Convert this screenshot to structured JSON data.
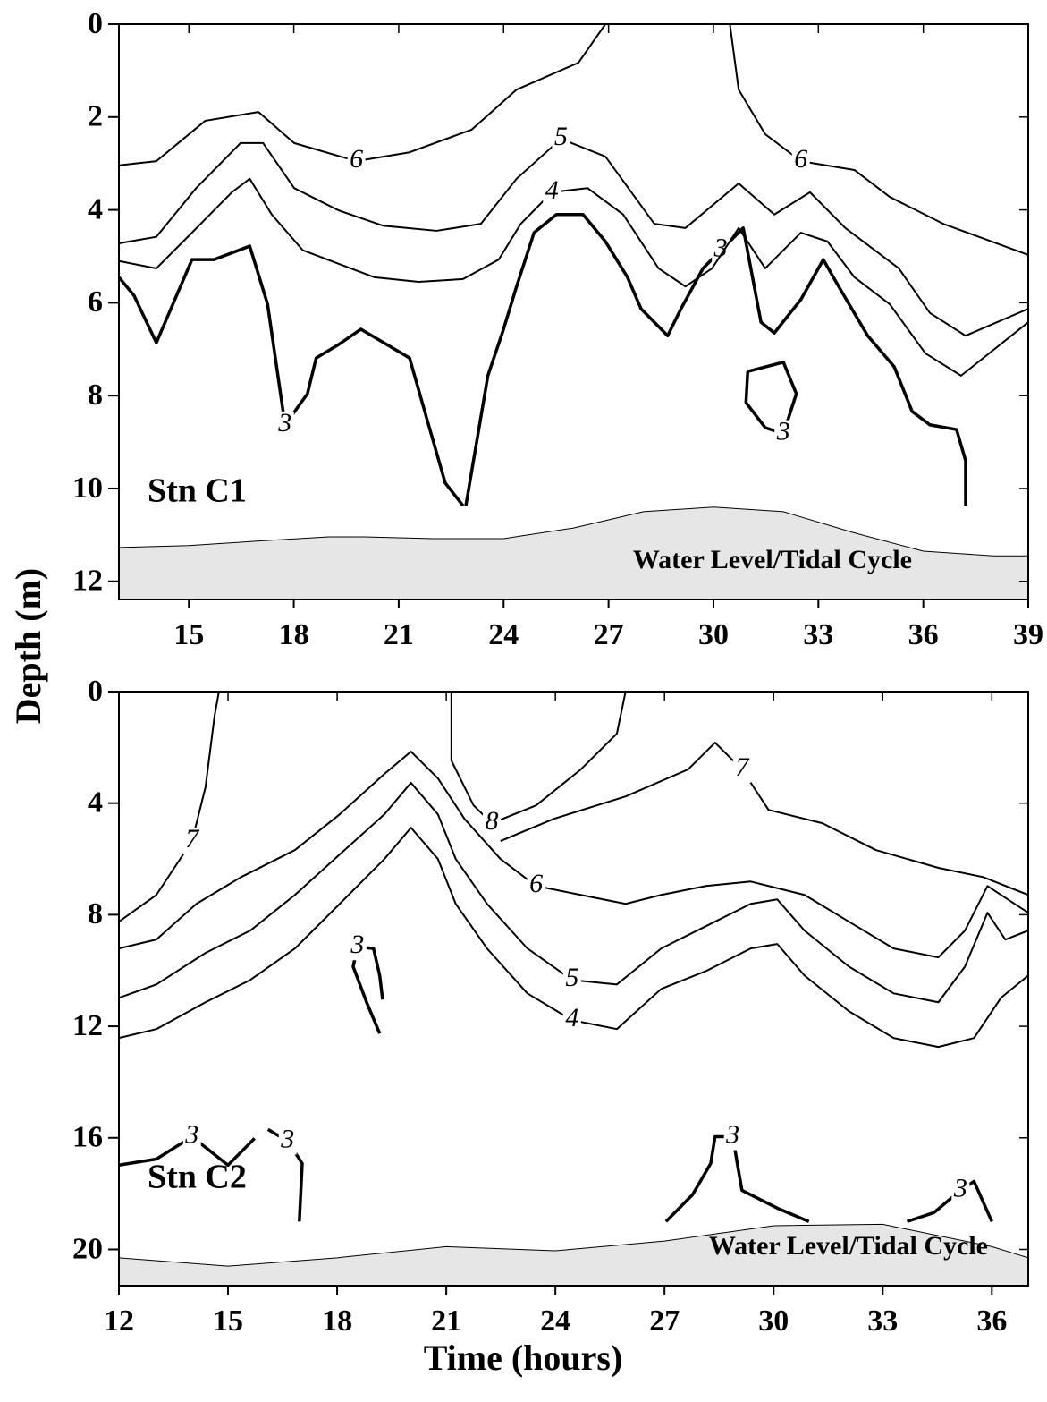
{
  "chart_data": [
    {
      "type": "contour",
      "label": "Stn C1",
      "annotation": "Water Level/Tidal Cycle",
      "ylabel": "Depth (m)",
      "xlim": [
        13,
        39
      ],
      "xticks": [
        15,
        18,
        21,
        24,
        27,
        30,
        33,
        36,
        39
      ],
      "ylim": [
        12.39,
        0
      ],
      "yticks": [
        0,
        2,
        4,
        6,
        8,
        10,
        12
      ],
      "emphasized_level": 3,
      "tide_color": "#e6e6e6",
      "tide": {
        "x": [
          13,
          15,
          17,
          19,
          20,
          22,
          24,
          26,
          28,
          30,
          32,
          34,
          36,
          38,
          39
        ],
        "y": [
          11.27,
          11.23,
          11.13,
          11.04,
          11.04,
          11.08,
          11.08,
          10.85,
          10.5,
          10.4,
          10.5,
          10.95,
          11.35,
          11.45,
          11.45
        ]
      },
      "contours": [
        {
          "level": 3,
          "x": [
            13,
            13.43,
            14.07,
            15.09,
            15.72,
            16.74,
            17.25,
            17.75,
            18.39,
            18.64,
            19.28,
            19.92,
            21.31,
            21.82,
            22.33,
            22.84
          ],
          "y": [
            5.45,
            5.84,
            6.86,
            5.07,
            5.07,
            4.78,
            6.03,
            8.63,
            7.96,
            7.19,
            6.9,
            6.57,
            7.19,
            8.54,
            9.88,
            10.37
          ]
        },
        {
          "level": 3,
          "x": [
            22.92,
            23.55,
            23.98,
            24.37,
            24.87,
            25.51,
            26.27,
            26.91,
            27.54,
            27.93,
            28.69,
            29.07,
            29.7,
            30.21,
            30.85,
            31.36,
            31.74,
            32.5,
            33.14,
            33.65,
            34.41,
            35.17,
            35.68,
            36.19,
            36.95,
            37.21,
            37.21
          ],
          "y": [
            10.37,
            7.57,
            6.61,
            5.65,
            4.49,
            4.1,
            4.1,
            4.68,
            5.45,
            6.13,
            6.71,
            6.13,
            5.26,
            4.87,
            4.39,
            6.42,
            6.65,
            5.93,
            5.07,
            5.74,
            6.71,
            7.38,
            8.34,
            8.63,
            8.73,
            9.4,
            10.37
          ]
        },
        {
          "level": 3,
          "x": [
            30.98,
            32.0,
            32.37,
            32.0,
            31.48,
            30.93,
            30.98
          ],
          "y": [
            7.48,
            7.28,
            7.96,
            8.82,
            8.69,
            8.15,
            7.48
          ]
        },
        {
          "level": 4,
          "x": [
            13,
            14.07,
            15.09,
            16.23,
            16.74,
            17.37,
            18.26,
            19.28,
            20.3,
            21.57,
            22.84,
            23.86,
            24.49,
            25.38,
            26.4,
            27.42,
            28.43,
            29.2,
            29.96,
            30.72,
            31.48,
            32.5,
            33.26,
            34.03,
            35.04,
            36.06,
            37.08,
            39
          ],
          "y": [
            5.1,
            5.26,
            4.49,
            3.62,
            3.33,
            4.1,
            4.87,
            5.16,
            5.45,
            5.55,
            5.49,
            5.07,
            4.3,
            3.62,
            3.53,
            4.1,
            5.26,
            5.65,
            5.26,
            4.39,
            5.26,
            4.49,
            4.68,
            5.45,
            6.03,
            7.09,
            7.57,
            6.42
          ]
        },
        {
          "level": 5,
          "x": [
            13,
            14.07,
            15.21,
            16.48,
            17.12,
            18.01,
            19.28,
            20.55,
            22.08,
            23.35,
            24.37,
            25.64,
            26.91,
            28.31,
            29.2,
            30.72,
            31.74,
            32.76,
            33.77,
            35.3,
            36.19,
            37.21,
            39
          ],
          "y": [
            4.72,
            4.58,
            3.53,
            2.56,
            2.56,
            3.53,
            4.01,
            4.34,
            4.45,
            4.3,
            3.33,
            2.47,
            2.85,
            4.3,
            4.39,
            3.43,
            4.1,
            3.62,
            4.39,
            5.26,
            6.22,
            6.71,
            6.13
          ]
        },
        {
          "level": 6,
          "x": [
            13,
            14.07,
            15.47,
            16.99,
            18.01,
            19.79,
            21.31,
            23.09,
            24.37,
            26.14,
            26.91
          ],
          "y": [
            3.04,
            2.95,
            2.08,
            1.89,
            2.56,
            2.95,
            2.76,
            2.27,
            1.41,
            0.83,
            0
          ]
        },
        {
          "level": 6,
          "x": [
            30.47,
            30.72,
            31.48,
            32.5,
            34.03,
            35.04,
            36.57,
            39
          ],
          "y": [
            0,
            1.41,
            2.37,
            2.95,
            3.14,
            3.72,
            4.3,
            4.97
          ]
        }
      ]
    },
    {
      "type": "contour",
      "label": "Stn C2",
      "annotation": "Water Level/Tidal Cycle",
      "xlabel": "Time (hours)",
      "xlim": [
        12,
        37
      ],
      "xticks": [
        12,
        15,
        18,
        21,
        24,
        27,
        30,
        33,
        36
      ],
      "ylim": [
        21.3,
        0
      ],
      "yticks": [
        0,
        4,
        8,
        12,
        16,
        20
      ],
      "emphasized_level": 3,
      "tide_color": "#e6e6e6",
      "tide": {
        "x": [
          12,
          15,
          18,
          21,
          24,
          27,
          30,
          33,
          36,
          37
        ],
        "y": [
          20.3,
          20.6,
          20.3,
          19.9,
          20.05,
          19.7,
          19.15,
          19.1,
          19.9,
          20.3
        ]
      },
      "contours": [
        {
          "level": 3,
          "x": [
            12,
            13.03,
            14.01,
            15.0,
            15.73
          ],
          "y": [
            16.98,
            16.76,
            15.96,
            16.98,
            16.02
          ]
        },
        {
          "level": 3,
          "x": [
            16.1,
            16.64,
            17.04,
            16.96
          ],
          "y": [
            15.7,
            16.12,
            16.92,
            19.0
          ]
        },
        {
          "level": 3,
          "x": [
            19.25,
            19.17,
            19.0,
            18.56,
            18.44,
            18.81,
            19.17
          ],
          "y": [
            11.04,
            10.18,
            9.21,
            9.15,
            9.86,
            11.14,
            12.26
          ]
        },
        {
          "level": 3,
          "x": [
            27.04,
            27.77,
            28.27,
            28.39,
            28.88,
            29.0,
            29.13,
            30.1,
            30.97
          ],
          "y": [
            19.0,
            18.04,
            16.92,
            15.96,
            15.96,
            16.92,
            17.88,
            18.52,
            19.0
          ]
        },
        {
          "level": 3,
          "x": [
            33.67,
            34.41,
            35.14,
            35.51,
            36.0
          ],
          "y": [
            19.0,
            18.68,
            17.88,
            17.56,
            19.0
          ]
        },
        {
          "level": 4,
          "x": [
            12,
            13.03,
            14.38,
            15.61,
            16.84,
            18.07,
            19.3,
            20.03,
            20.77,
            21.26,
            22.12,
            23.23,
            24.46,
            25.69,
            26.91,
            28.14,
            29.37,
            30.1,
            30.85,
            32.07,
            33.3,
            34.53,
            35.51,
            36.25,
            37
          ],
          "y": [
            12.42,
            12.1,
            11.14,
            10.34,
            9.21,
            7.61,
            6.0,
            4.88,
            6.0,
            7.61,
            9.21,
            10.82,
            11.78,
            12.1,
            10.66,
            10.02,
            9.21,
            9.05,
            10.18,
            11.46,
            12.42,
            12.74,
            12.42,
            10.98,
            10.18
          ]
        },
        {
          "level": 5,
          "x": [
            12,
            13.03,
            14.38,
            15.61,
            16.84,
            18.07,
            19.3,
            20.03,
            20.77,
            21.26,
            22.12,
            23.23,
            24.46,
            25.69,
            26.91,
            28.14,
            29.37,
            30.1,
            30.85,
            32.07,
            33.3,
            34.53,
            35.26,
            35.88,
            36.37,
            37
          ],
          "y": [
            10.98,
            10.5,
            9.37,
            8.57,
            7.29,
            5.84,
            4.4,
            3.27,
            4.4,
            6.0,
            7.61,
            9.21,
            10.34,
            10.5,
            9.21,
            8.41,
            7.61,
            7.45,
            8.57,
            9.86,
            10.82,
            11.14,
            9.86,
            7.93,
            8.89,
            8.57
          ]
        },
        {
          "level": 6,
          "x": [
            12,
            13.03,
            14.13,
            15.36,
            16.84,
            18.07,
            19.3,
            20.03,
            20.77,
            21.5,
            22.49,
            23.47,
            24.7,
            25.93,
            26.91,
            28.14,
            29.37,
            30.85,
            32.07,
            33.3,
            34.53,
            35.26,
            35.88,
            37
          ],
          "y": [
            9.21,
            8.89,
            7.61,
            6.65,
            5.68,
            4.4,
            2.95,
            2.15,
            3.11,
            4.56,
            6.0,
            6.97,
            7.29,
            7.61,
            7.29,
            6.97,
            6.81,
            7.29,
            8.25,
            9.21,
            9.53,
            8.57,
            6.97,
            7.93
          ]
        },
        {
          "level": 7,
          "x": [
            12,
            13.03,
            14.01,
            14.38,
            14.63,
            14.75
          ],
          "y": [
            8.25,
            7.29,
            5.36,
            3.43,
            0.87,
            0
          ]
        },
        {
          "level": 7,
          "x": [
            22.49,
            23.96,
            25.93,
            27.65,
            28.39,
            29.13,
            29.86,
            31.34,
            32.81,
            34.53,
            35.76,
            37
          ],
          "y": [
            5.36,
            4.56,
            3.76,
            2.79,
            1.83,
            2.79,
            4.24,
            4.72,
            5.68,
            6.32,
            6.65,
            7.29
          ]
        },
        {
          "level": 8,
          "x": [
            21.14,
            21.14,
            21.75,
            22.25,
            23.47,
            24.7,
            25.69,
            25.93
          ],
          "y": [
            0,
            2.47,
            4.08,
            4.72,
            4.08,
            2.79,
            1.51,
            0
          ]
        }
      ]
    }
  ]
}
